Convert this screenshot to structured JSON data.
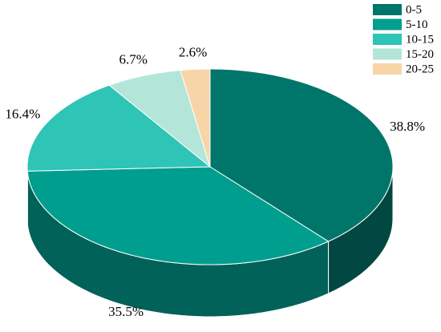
{
  "chart_data": {
    "type": "pie3d",
    "categories": [
      "0-5",
      "5-10",
      "10-15",
      "15-20",
      "20-25"
    ],
    "values": [
      38.8,
      35.5,
      16.4,
      6.7,
      2.6
    ],
    "value_labels": [
      "38.8%",
      "35.5%",
      "16.4%",
      "6.7%",
      "2.6%"
    ],
    "colors": [
      "#00756a",
      "#009e8e",
      "#2ec4b6",
      "#b3e6d9",
      "#f8d5a8"
    ],
    "legend": "upper right"
  }
}
